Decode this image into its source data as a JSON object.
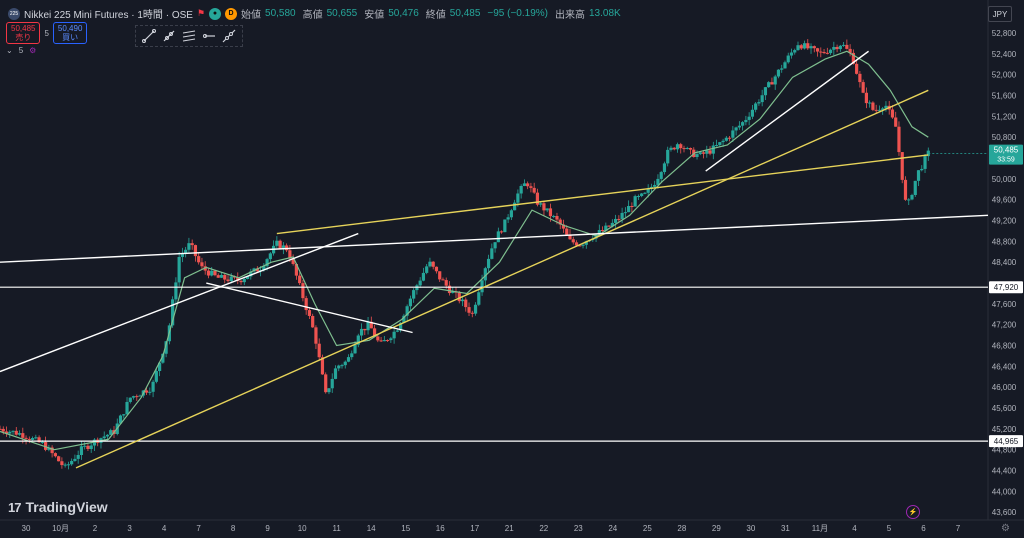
{
  "legend": {
    "logo_text": "225",
    "title": "Nikkei 225 Mini Futures · 1時間 · OSE",
    "open_label": "始値",
    "open": "50,580",
    "high_label": "高値",
    "high": "50,655",
    "low_label": "安値",
    "low": "50,476",
    "close_label": "終値",
    "close": "50,485",
    "change": "−95 (−0.19%)",
    "volume_label": "出来高",
    "volume": "13.08K"
  },
  "bidask": {
    "sell_price": "50,485",
    "sell_label": "売り",
    "spread": "5",
    "buy_price": "50,490",
    "buy_label": "買い"
  },
  "indicator_count": "5",
  "currency": "JPY",
  "brand": "TradingView",
  "colors": {
    "background": "#161a25",
    "up": "#26a69a",
    "down": "#ef5350",
    "ma": "#7fbf8f",
    "channel": "#e6d35a",
    "trendline": "#ffffff"
  },
  "icons": [
    "trend-line-icon",
    "ray-icon",
    "parallel-channel-icon",
    "horizontal-ray-icon",
    "extended-line-icon"
  ],
  "chart_data": {
    "type": "candlestick",
    "x_tick_labels": [
      "30",
      "10月",
      "2",
      "3",
      "4",
      "7",
      "8",
      "9",
      "10",
      "11",
      "14",
      "15",
      "16",
      "17",
      "21",
      "22",
      "23",
      "24",
      "25",
      "28",
      "29",
      "30",
      "31",
      "11月",
      "4",
      "5",
      "6",
      "7"
    ],
    "y_tick_labels": [
      "52,800",
      "52,400",
      "52,000",
      "51,600",
      "51,200",
      "50,800",
      "50,000",
      "49,600",
      "49,200",
      "48,800",
      "48,400",
      "47,600",
      "47,200",
      "46,800",
      "46,400",
      "46,000",
      "45,600",
      "45,200",
      "44,800",
      "44,400",
      "44,000",
      "43,600"
    ],
    "ylim": [
      43600,
      53000
    ],
    "price_path": [
      [
        0,
        45200
      ],
      [
        4,
        45100
      ],
      [
        8,
        44900
      ],
      [
        12,
        44450
      ],
      [
        15,
        44800
      ],
      [
        18,
        45000
      ],
      [
        21,
        45150
      ],
      [
        24,
        45800
      ],
      [
        26,
        45900
      ],
      [
        28,
        46000
      ],
      [
        31,
        47050
      ],
      [
        33,
        48500
      ],
      [
        35,
        48750
      ],
      [
        37,
        48300
      ],
      [
        40,
        48100
      ],
      [
        44,
        48050
      ],
      [
        48,
        48300
      ],
      [
        50,
        48600
      ],
      [
        51,
        48750
      ],
      [
        53,
        48650
      ],
      [
        55,
        48000
      ],
      [
        58,
        47000
      ],
      [
        60,
        45850
      ],
      [
        62,
        46400
      ],
      [
        64,
        46500
      ],
      [
        66,
        47050
      ],
      [
        68,
        47200
      ],
      [
        70,
        46800
      ],
      [
        73,
        47100
      ],
      [
        76,
        47800
      ],
      [
        79,
        48400
      ],
      [
        81,
        48100
      ],
      [
        83,
        47850
      ],
      [
        85,
        47650
      ],
      [
        87,
        47400
      ],
      [
        89,
        48200
      ],
      [
        91,
        48800
      ],
      [
        93,
        49150
      ],
      [
        95,
        49650
      ],
      [
        97,
        49950
      ],
      [
        99,
        49550
      ],
      [
        101,
        49350
      ],
      [
        103,
        49150
      ],
      [
        105,
        48800
      ],
      [
        107,
        48750
      ],
      [
        109,
        48900
      ],
      [
        111,
        49000
      ],
      [
        113,
        49150
      ],
      [
        115,
        49350
      ],
      [
        117,
        49600
      ],
      [
        119,
        49700
      ],
      [
        121,
        50000
      ],
      [
        123,
        50500
      ],
      [
        125,
        50700
      ],
      [
        127,
        50500
      ],
      [
        129,
        50450
      ],
      [
        131,
        50550
      ],
      [
        133,
        50700
      ],
      [
        135,
        50900
      ],
      [
        137,
        51100
      ],
      [
        139,
        51400
      ],
      [
        141,
        51700
      ],
      [
        143,
        52000
      ],
      [
        145,
        52300
      ],
      [
        147,
        52600
      ],
      [
        149,
        52500
      ],
      [
        151,
        52400
      ],
      [
        153,
        52500
      ],
      [
        155,
        52600
      ],
      [
        157,
        52350
      ],
      [
        159,
        51600
      ],
      [
        161,
        51300
      ],
      [
        163,
        51450
      ],
      [
        165,
        51000
      ],
      [
        167,
        49400
      ],
      [
        169,
        50100
      ],
      [
        171,
        50485
      ]
    ],
    "moving_average": [
      [
        0,
        45150
      ],
      [
        10,
        44800
      ],
      [
        20,
        45000
      ],
      [
        26,
        45800
      ],
      [
        30,
        46600
      ],
      [
        34,
        48100
      ],
      [
        38,
        48300
      ],
      [
        44,
        48100
      ],
      [
        50,
        48400
      ],
      [
        54,
        48500
      ],
      [
        58,
        47600
      ],
      [
        62,
        46800
      ],
      [
        68,
        46900
      ],
      [
        74,
        47300
      ],
      [
        80,
        47900
      ],
      [
        86,
        47800
      ],
      [
        92,
        48400
      ],
      [
        98,
        49400
      ],
      [
        104,
        49100
      ],
      [
        110,
        48900
      ],
      [
        116,
        49300
      ],
      [
        122,
        49950
      ],
      [
        128,
        50500
      ],
      [
        134,
        50650
      ],
      [
        140,
        51150
      ],
      [
        146,
        51950
      ],
      [
        152,
        52300
      ],
      [
        156,
        52450
      ],
      [
        160,
        52200
      ],
      [
        164,
        51700
      ],
      [
        168,
        51000
      ],
      [
        171,
        50800
      ]
    ],
    "horizontal_lines": [
      {
        "value": 47920,
        "label": "47,920"
      },
      {
        "value": 44965,
        "label": "44,965"
      }
    ],
    "last_price": {
      "value": 50485,
      "label": "50,485",
      "countdown": "33:59"
    },
    "channel_lines": [
      {
        "from": [
          14,
          44450
        ],
        "to": [
          171,
          51700
        ]
      },
      {
        "from": [
          51,
          48950
        ],
        "to": [
          171,
          50460
        ]
      }
    ],
    "trend_lines": [
      {
        "from": [
          0,
          46300
        ],
        "to": [
          66,
          48950
        ]
      },
      {
        "from": [
          0,
          48400
        ],
        "to": [
          182,
          49300
        ]
      },
      {
        "from": [
          38,
          48000
        ],
        "to": [
          76,
          47050
        ]
      },
      {
        "from": [
          130,
          50150
        ],
        "to": [
          160,
          52450
        ]
      }
    ]
  }
}
